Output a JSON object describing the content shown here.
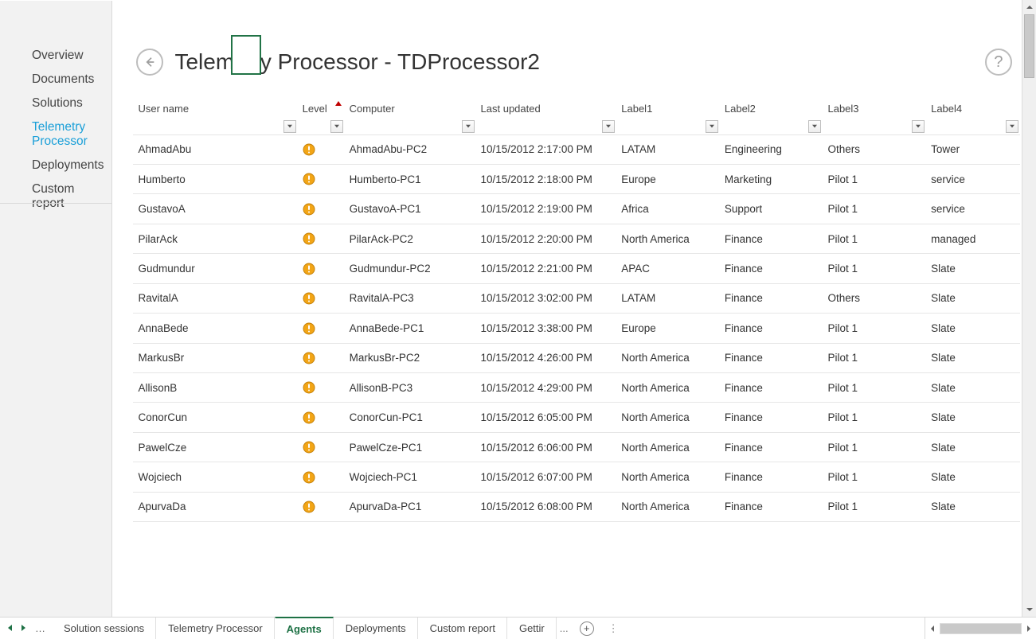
{
  "sidebar": {
    "items": [
      {
        "label": "Overview"
      },
      {
        "label": "Documents"
      },
      {
        "label": "Solutions"
      },
      {
        "label": "Telemetry Processor",
        "active": true
      },
      {
        "label": "Deployments"
      },
      {
        "label": "Custom report"
      }
    ]
  },
  "header": {
    "title": "Telemetry Processor - TDProcessor2"
  },
  "table": {
    "columns": [
      {
        "key": "user",
        "label": "User name"
      },
      {
        "key": "level",
        "label": "Level",
        "sort_indicator": true
      },
      {
        "key": "comp",
        "label": "Computer"
      },
      {
        "key": "upd",
        "label": "Last updated"
      },
      {
        "key": "l1",
        "label": "Label1"
      },
      {
        "key": "l2",
        "label": "Label2"
      },
      {
        "key": "l3",
        "label": "Label3"
      },
      {
        "key": "l4",
        "label": "Label4"
      }
    ],
    "level_icon_color": "#f2a516",
    "rows": [
      {
        "user": "AhmadAbu",
        "comp": "AhmadAbu-PC2",
        "upd": "10/15/2012 2:17:00 PM",
        "l1": "LATAM",
        "l2": "Engineering",
        "l3": "Others",
        "l4": "Tower"
      },
      {
        "user": "Humberto",
        "comp": "Humberto-PC1",
        "upd": "10/15/2012 2:18:00 PM",
        "l1": "Europe",
        "l2": "Marketing",
        "l3": "Pilot 1",
        "l4": "service"
      },
      {
        "user": "GustavoA",
        "comp": "GustavoA-PC1",
        "upd": "10/15/2012 2:19:00 PM",
        "l1": "Africa",
        "l2": "Support",
        "l3": "Pilot 1",
        "l4": "service"
      },
      {
        "user": "PilarAck",
        "comp": "PilarAck-PC2",
        "upd": "10/15/2012 2:20:00 PM",
        "l1": "North America",
        "l2": "Finance",
        "l3": "Pilot 1",
        "l4": "managed"
      },
      {
        "user": "Gudmundur",
        "comp": "Gudmundur-PC2",
        "upd": "10/15/2012 2:21:00 PM",
        "l1": "APAC",
        "l2": "Finance",
        "l3": "Pilot 1",
        "l4": "Slate"
      },
      {
        "user": "RavitalA",
        "comp": "RavitalA-PC3",
        "upd": "10/15/2012 3:02:00 PM",
        "l1": "LATAM",
        "l2": "Finance",
        "l3": "Others",
        "l4": "Slate"
      },
      {
        "user": "AnnaBede",
        "comp": "AnnaBede-PC1",
        "upd": "10/15/2012 3:38:00 PM",
        "l1": "Europe",
        "l2": "Finance",
        "l3": "Pilot 1",
        "l4": "Slate"
      },
      {
        "user": "MarkusBr",
        "comp": "MarkusBr-PC2",
        "upd": "10/15/2012 4:26:00 PM",
        "l1": "North America",
        "l2": "Finance",
        "l3": "Pilot 1",
        "l4": "Slate"
      },
      {
        "user": "AllisonB",
        "comp": "AllisonB-PC3",
        "upd": "10/15/2012 4:29:00 PM",
        "l1": "North America",
        "l2": "Finance",
        "l3": "Pilot 1",
        "l4": "Slate"
      },
      {
        "user": "ConorCun",
        "comp": "ConorCun-PC1",
        "upd": "10/15/2012 6:05:00 PM",
        "l1": "North America",
        "l2": "Finance",
        "l3": "Pilot 1",
        "l4": "Slate"
      },
      {
        "user": "PawelCze",
        "comp": "PawelCze-PC1",
        "upd": "10/15/2012 6:06:00 PM",
        "l1": "North America",
        "l2": "Finance",
        "l3": "Pilot 1",
        "l4": "Slate"
      },
      {
        "user": "Wojciech",
        "comp": "Wojciech-PC1",
        "upd": "10/15/2012 6:07:00 PM",
        "l1": "North America",
        "l2": "Finance",
        "l3": "Pilot 1",
        "l4": "Slate"
      },
      {
        "user": "ApurvaDa",
        "comp": "ApurvaDa-PC1",
        "upd": "10/15/2012 6:08:00 PM",
        "l1": "North America",
        "l2": "Finance",
        "l3": "Pilot 1",
        "l4": "Slate"
      }
    ]
  },
  "tabs": {
    "nav_dots": "…",
    "items": [
      {
        "label": "Solution sessions"
      },
      {
        "label": "Telemetry Processor"
      },
      {
        "label": "Agents",
        "active": true
      },
      {
        "label": "Deployments"
      },
      {
        "label": "Custom report"
      },
      {
        "label": "Gettir"
      }
    ],
    "overflow": "..."
  },
  "colors": {
    "accent_green": "#217346",
    "link_blue": "#1a9fd8",
    "border": "#d9d9d9",
    "sidebar_bg": "#f2f2f2"
  }
}
